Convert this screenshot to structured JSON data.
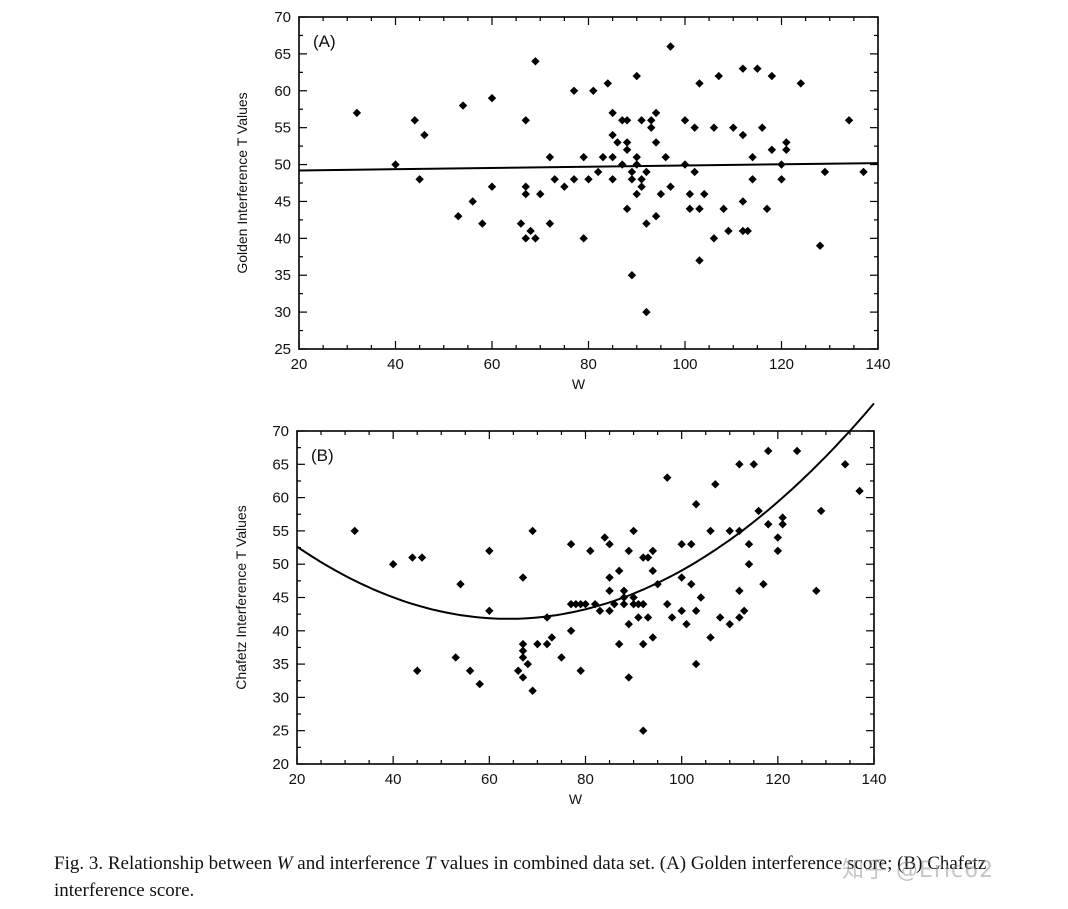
{
  "chart_data": [
    {
      "type": "scatter",
      "panel_label": "(A)",
      "xlabel": "W",
      "ylabel": "Golden Interference T Values",
      "xlim": [
        20,
        140
      ],
      "ylim": [
        25,
        70
      ],
      "xticks": [
        20,
        40,
        60,
        80,
        100,
        120,
        140
      ],
      "yticks": [
        25,
        30,
        35,
        40,
        45,
        50,
        55,
        60,
        65,
        70
      ],
      "fit": {
        "type": "linear",
        "x": [
          20,
          140
        ],
        "y": [
          49.2,
          50.2
        ]
      },
      "points": [
        [
          32,
          57
        ],
        [
          40,
          50
        ],
        [
          44,
          56
        ],
        [
          45,
          48
        ],
        [
          46,
          54
        ],
        [
          53,
          43
        ],
        [
          54,
          58
        ],
        [
          56,
          45
        ],
        [
          58,
          42
        ],
        [
          60,
          59
        ],
        [
          60,
          47
        ],
        [
          66,
          42
        ],
        [
          67,
          40
        ],
        [
          67,
          46
        ],
        [
          67,
          47
        ],
        [
          67,
          56
        ],
        [
          68,
          41
        ],
        [
          69,
          40
        ],
        [
          69,
          64
        ],
        [
          70,
          46
        ],
        [
          72,
          42
        ],
        [
          72,
          51
        ],
        [
          73,
          48
        ],
        [
          75,
          47
        ],
        [
          77,
          48
        ],
        [
          77,
          60
        ],
        [
          79,
          40
        ],
        [
          79,
          51
        ],
        [
          80,
          48
        ],
        [
          81,
          60
        ],
        [
          82,
          49
        ],
        [
          83,
          51
        ],
        [
          84,
          61
        ],
        [
          85,
          48
        ],
        [
          85,
          51
        ],
        [
          85,
          54
        ],
        [
          85,
          57
        ],
        [
          86,
          53
        ],
        [
          87,
          50
        ],
        [
          87,
          56
        ],
        [
          88,
          52
        ],
        [
          88,
          53
        ],
        [
          88,
          44
        ],
        [
          88,
          56
        ],
        [
          89,
          49
        ],
        [
          89,
          35
        ],
        [
          89,
          48
        ],
        [
          90,
          50
        ],
        [
          90,
          51
        ],
        [
          90,
          62
        ],
        [
          90,
          46
        ],
        [
          91,
          48
        ],
        [
          91,
          56
        ],
        [
          91,
          47
        ],
        [
          92,
          30
        ],
        [
          92,
          49
        ],
        [
          92,
          42
        ],
        [
          93,
          55
        ],
        [
          93,
          56
        ],
        [
          94,
          53
        ],
        [
          94,
          43
        ],
        [
          94,
          57
        ],
        [
          95,
          46
        ],
        [
          96,
          51
        ],
        [
          97,
          66
        ],
        [
          97,
          47
        ],
        [
          100,
          56
        ],
        [
          100,
          50
        ],
        [
          101,
          44
        ],
        [
          101,
          46
        ],
        [
          102,
          49
        ],
        [
          102,
          55
        ],
        [
          103,
          61
        ],
        [
          103,
          44
        ],
        [
          103,
          37
        ],
        [
          104,
          46
        ],
        [
          106,
          55
        ],
        [
          106,
          40
        ],
        [
          107,
          62
        ],
        [
          108,
          44
        ],
        [
          109,
          41
        ],
        [
          110,
          55
        ],
        [
          112,
          54
        ],
        [
          112,
          45
        ],
        [
          112,
          63
        ],
        [
          112,
          41
        ],
        [
          113,
          41
        ],
        [
          114,
          51
        ],
        [
          114,
          48
        ],
        [
          115,
          63
        ],
        [
          116,
          55
        ],
        [
          117,
          44
        ],
        [
          118,
          62
        ],
        [
          118,
          52
        ],
        [
          120,
          50
        ],
        [
          120,
          48
        ],
        [
          121,
          53
        ],
        [
          121,
          52
        ],
        [
          124,
          61
        ],
        [
          128,
          39
        ],
        [
          129,
          49
        ],
        [
          134,
          56
        ],
        [
          137,
          49
        ]
      ]
    },
    {
      "type": "scatter",
      "panel_label": "(B)",
      "xlabel": "W",
      "ylabel": "Chafetz Interference T Values",
      "xlim": [
        20,
        140
      ],
      "ylim": [
        20,
        70
      ],
      "xticks": [
        20,
        40,
        60,
        80,
        100,
        120,
        140
      ],
      "yticks": [
        20,
        25,
        30,
        35,
        40,
        45,
        50,
        55,
        60,
        65,
        70
      ],
      "fit": {
        "type": "quadratic",
        "vertex_x": 64,
        "vertex_y": 41.8,
        "a": 0.0056
      },
      "points": [
        [
          32,
          55
        ],
        [
          40,
          50
        ],
        [
          44,
          51
        ],
        [
          45,
          34
        ],
        [
          46,
          51
        ],
        [
          53,
          36
        ],
        [
          54,
          47
        ],
        [
          56,
          34
        ],
        [
          58,
          32
        ],
        [
          60,
          52
        ],
        [
          60,
          43
        ],
        [
          66,
          34
        ],
        [
          67,
          33
        ],
        [
          67,
          36
        ],
        [
          67,
          37
        ],
        [
          67,
          38
        ],
        [
          67,
          48
        ],
        [
          68,
          35
        ],
        [
          69,
          31
        ],
        [
          69,
          55
        ],
        [
          70,
          38
        ],
        [
          72,
          38
        ],
        [
          72,
          42
        ],
        [
          73,
          39
        ],
        [
          75,
          36
        ],
        [
          77,
          40
        ],
        [
          77,
          53
        ],
        [
          77,
          44
        ],
        [
          78,
          44
        ],
        [
          79,
          34
        ],
        [
          79,
          44
        ],
        [
          80,
          44
        ],
        [
          81,
          52
        ],
        [
          82,
          44
        ],
        [
          83,
          43
        ],
        [
          84,
          54
        ],
        [
          85,
          43
        ],
        [
          85,
          46
        ],
        [
          85,
          48
        ],
        [
          85,
          53
        ],
        [
          86,
          44
        ],
        [
          87,
          49
        ],
        [
          87,
          38
        ],
        [
          88,
          44
        ],
        [
          88,
          45
        ],
        [
          88,
          46
        ],
        [
          89,
          33
        ],
        [
          89,
          52
        ],
        [
          89,
          41
        ],
        [
          90,
          45
        ],
        [
          90,
          55
        ],
        [
          90,
          44
        ],
        [
          91,
          44
        ],
        [
          91,
          42
        ],
        [
          92,
          25
        ],
        [
          92,
          38
        ],
        [
          92,
          51
        ],
        [
          92,
          44
        ],
        [
          93,
          42
        ],
        [
          93,
          51
        ],
        [
          94,
          52
        ],
        [
          94,
          39
        ],
        [
          94,
          49
        ],
        [
          95,
          47
        ],
        [
          97,
          63
        ],
        [
          97,
          44
        ],
        [
          98,
          42
        ],
        [
          100,
          48
        ],
        [
          100,
          53
        ],
        [
          100,
          43
        ],
        [
          101,
          41
        ],
        [
          102,
          53
        ],
        [
          102,
          47
        ],
        [
          103,
          35
        ],
        [
          103,
          59
        ],
        [
          103,
          43
        ],
        [
          104,
          45
        ],
        [
          106,
          55
        ],
        [
          106,
          39
        ],
        [
          107,
          62
        ],
        [
          108,
          42
        ],
        [
          110,
          55
        ],
        [
          110,
          41
        ],
        [
          112,
          65
        ],
        [
          112,
          46
        ],
        [
          112,
          42
        ],
        [
          112,
          55
        ],
        [
          113,
          43
        ],
        [
          114,
          53
        ],
        [
          114,
          50
        ],
        [
          115,
          65
        ],
        [
          116,
          58
        ],
        [
          117,
          47
        ],
        [
          118,
          67
        ],
        [
          118,
          56
        ],
        [
          120,
          52
        ],
        [
          120,
          54
        ],
        [
          121,
          57
        ],
        [
          121,
          56
        ],
        [
          124,
          67
        ],
        [
          128,
          46
        ],
        [
          129,
          58
        ],
        [
          134,
          65
        ],
        [
          137,
          61
        ]
      ]
    }
  ],
  "caption": {
    "prefix": "Fig. 3. Relationship between ",
    "w": "W",
    "middle": " and interference ",
    "t": "T",
    "suffix": " values in combined data set. (A) Golden interference score; (B) Chafetz interference score."
  },
  "watermark": "知乎 @Eric62"
}
